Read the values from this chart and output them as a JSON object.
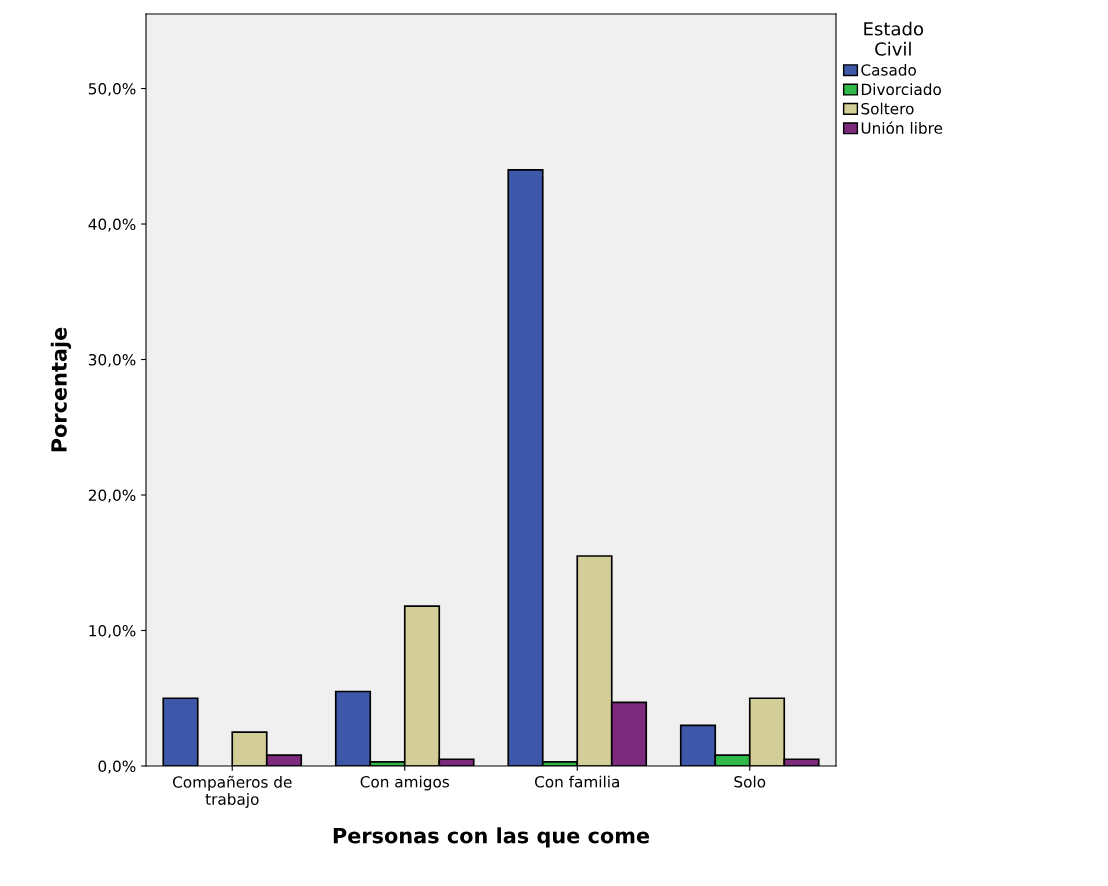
{
  "chart_data": {
    "type": "bar",
    "xlabel": "Personas con las que come",
    "ylabel": "Porcentaje",
    "legend_title": "Estado\nCivil",
    "legend": "top right",
    "grid": false,
    "categories": [
      "Compañeros de\ntrabajo",
      "Con amigos",
      "Con familia",
      "Solo"
    ],
    "series": [
      {
        "name": "Casado",
        "color": "#3d58a8",
        "values": [
          5.0,
          5.5,
          44.0,
          3.0
        ]
      },
      {
        "name": "Divorciado",
        "color": "#30b848",
        "values": [
          null,
          0.3,
          0.3,
          0.8
        ]
      },
      {
        "name": "Soltero",
        "color": "#d3ce97",
        "values": [
          2.5,
          11.8,
          15.5,
          5.0
        ]
      },
      {
        "name": "Unión libre",
        "color": "#7b2a7c",
        "values": [
          0.8,
          0.5,
          4.7,
          0.5
        ]
      }
    ],
    "ylim": [
      0,
      55.5
    ],
    "yticks": [
      {
        "value": 0,
        "label": "0,0%"
      },
      {
        "value": 10,
        "label": "10,0%"
      },
      {
        "value": 20,
        "label": "20,0%"
      },
      {
        "value": 30,
        "label": "30,0%"
      },
      {
        "value": 40,
        "label": "40,0%"
      },
      {
        "value": 50,
        "label": "50,0%"
      }
    ]
  }
}
